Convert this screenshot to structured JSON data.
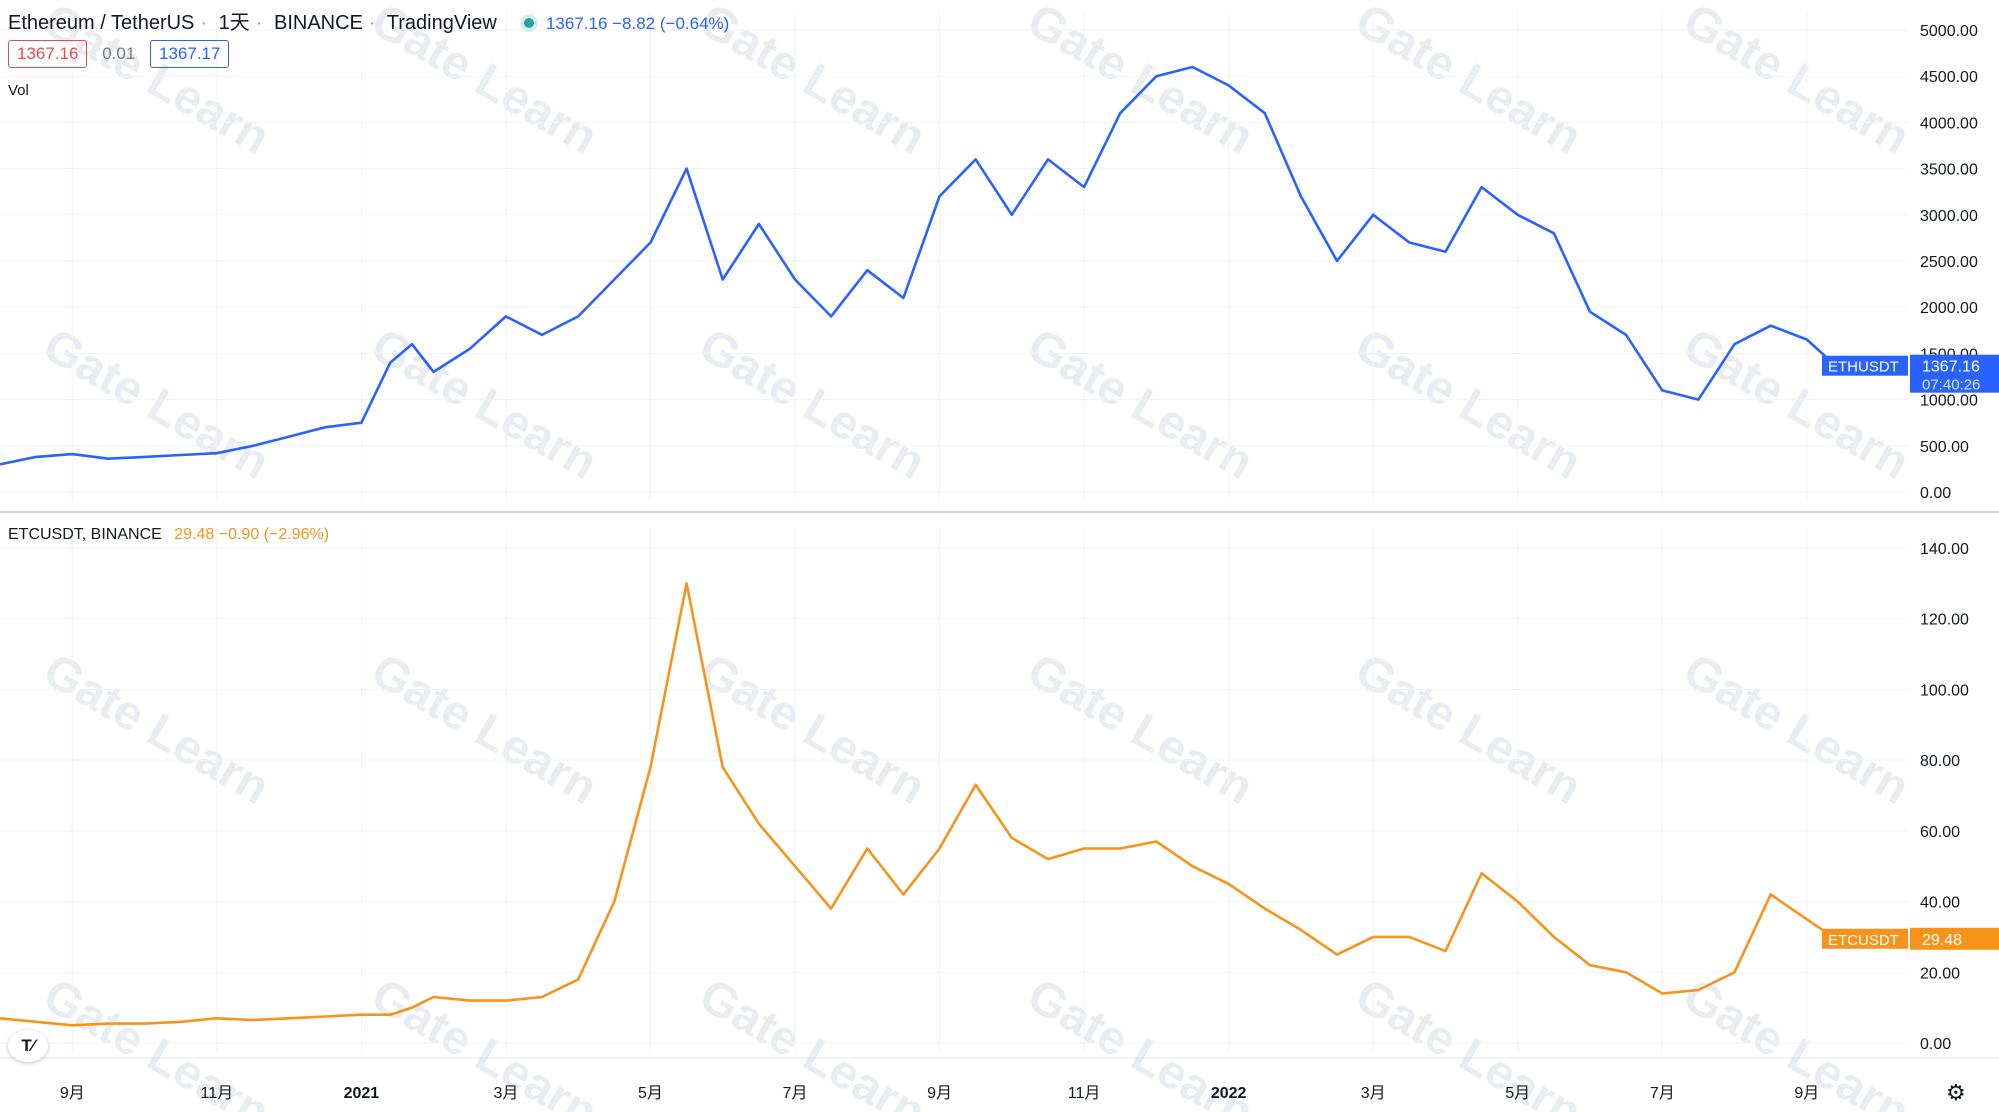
{
  "header": {
    "symbol": "Ethereum / TetherUS",
    "interval": "1天",
    "exchange": "BINANCE",
    "brand": "TradingView",
    "price_line": "1367.16  −8.82 (−0.64%)",
    "bid": "1367.16",
    "spread": "0.01",
    "ask": "1367.17",
    "vol_label": "Vol"
  },
  "etc_header": {
    "name": "ETCUSDT, BINANCE",
    "quote": "29.48  −0.90 (−2.96%)"
  },
  "watermark_text": "Gate Learn",
  "colors": {
    "eth": "#2962ff",
    "etc": "#f7931a",
    "grid": "#f0f3fa"
  },
  "chart_data": [
    {
      "type": "line",
      "title": "Ethereum / TetherUS · 1天 · BINANCE",
      "series_name": "ETHUSDT",
      "last_label": "ETHUSDT",
      "last_value": "1367.16",
      "countdown": "07:40:26",
      "ylim": [
        0,
        5000
      ],
      "yticks": [
        "5000.00",
        "4500.00",
        "4000.00",
        "3500.00",
        "3000.00",
        "2500.00",
        "2000.00",
        "1500.00",
        "1000.00",
        "500.00",
        "0.00"
      ],
      "ytick_values": [
        5000,
        4500,
        4000,
        3500,
        3000,
        2500,
        2000,
        1500,
        1000,
        500,
        0
      ],
      "x": [
        0,
        0.5,
        1,
        1.5,
        2,
        2.5,
        3,
        3.5,
        4,
        4.5,
        5,
        5.4,
        5.7,
        6,
        6.5,
        7,
        7.5,
        8,
        8.5,
        9,
        9.5,
        10,
        10.5,
        11,
        11.5,
        12,
        12.5,
        13,
        13.5,
        14,
        14.5,
        15,
        15.5,
        16,
        16.5,
        17,
        17.5,
        18,
        18.5,
        19,
        19.5,
        20,
        20.5,
        21,
        21.5,
        22,
        22.5,
        23,
        23.5,
        24,
        24.5,
        25,
        25.4
      ],
      "values": [
        300,
        380,
        410,
        360,
        380,
        400,
        420,
        500,
        600,
        700,
        750,
        1400,
        1600,
        1300,
        1550,
        1900,
        1700,
        1900,
        2300,
        2700,
        3500,
        2300,
        2900,
        2300,
        1900,
        2400,
        2100,
        3200,
        3600,
        3000,
        3600,
        3300,
        4100,
        4500,
        4600,
        4400,
        4100,
        3200,
        2500,
        3000,
        2700,
        2600,
        3300,
        3000,
        2800,
        1950,
        1700,
        1100,
        1000,
        1600,
        1800,
        1650,
        1367
      ]
    },
    {
      "type": "line",
      "title": "ETCUSDT, BINANCE",
      "series_name": "ETCUSDT",
      "last_label": "ETCUSDT",
      "last_value": "29.48",
      "ylim": [
        0,
        140
      ],
      "yticks": [
        "140.00",
        "120.00",
        "100.00",
        "80.00",
        "60.00",
        "40.00",
        "20.00",
        "0.00"
      ],
      "ytick_values": [
        140,
        120,
        100,
        80,
        60,
        40,
        20,
        0
      ],
      "x": [
        0,
        0.5,
        1,
        1.5,
        2,
        2.5,
        3,
        3.5,
        4,
        4.5,
        5,
        5.4,
        5.7,
        6,
        6.5,
        7,
        7.5,
        8,
        8.5,
        9,
        9.5,
        10,
        10.5,
        11,
        11.5,
        12,
        12.5,
        13,
        13.5,
        14,
        14.5,
        15,
        15.5,
        16,
        16.5,
        17,
        17.5,
        18,
        18.5,
        19,
        19.5,
        20,
        20.5,
        21,
        21.5,
        22,
        22.5,
        23,
        23.5,
        24,
        24.5,
        25,
        25.4
      ],
      "values": [
        7,
        6,
        5,
        5.5,
        5.5,
        6,
        7,
        6.5,
        7,
        7.5,
        8,
        8,
        10,
        13,
        12,
        12,
        13,
        18,
        40,
        78,
        130,
        78,
        62,
        50,
        38,
        55,
        42,
        55,
        73,
        58,
        52,
        55,
        55,
        57,
        50,
        45,
        38,
        32,
        25,
        30,
        30,
        26,
        48,
        40,
        30,
        22,
        20,
        14,
        15,
        20,
        42,
        35,
        29.48
      ]
    }
  ],
  "x_axis": {
    "labels": [
      "9月",
      "11月",
      "2021",
      "3月",
      "5月",
      "7月",
      "9月",
      "11月",
      "2022",
      "3月",
      "5月",
      "7月",
      "9月"
    ],
    "positions": [
      1,
      3,
      5,
      7,
      9,
      11,
      13,
      15,
      17,
      19,
      21,
      23,
      25
    ],
    "bold": [
      false,
      false,
      true,
      false,
      false,
      false,
      false,
      false,
      true,
      false,
      false,
      false,
      false
    ]
  }
}
